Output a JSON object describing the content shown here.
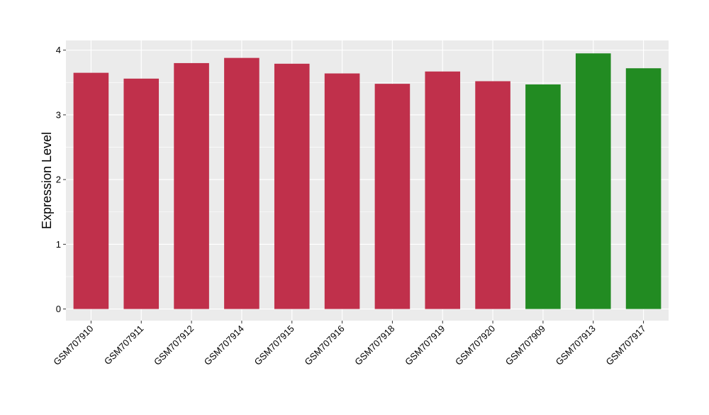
{
  "chart_data": {
    "type": "bar",
    "title": "",
    "xlabel": "",
    "ylabel": "Expression Level",
    "ylim": [
      -0.18,
      4.15
    ],
    "y_ticks": [
      "0",
      "1",
      "2",
      "3",
      "4"
    ],
    "categories": [
      "GSM707910",
      "GSM707911",
      "GSM707912",
      "GSM707914",
      "GSM707915",
      "GSM707916",
      "GSM707918",
      "GSM707919",
      "GSM707920",
      "GSM707909",
      "GSM707913",
      "GSM707917"
    ],
    "values": [
      3.65,
      3.56,
      3.8,
      3.88,
      3.79,
      3.64,
      3.48,
      3.67,
      3.52,
      3.47,
      3.95,
      3.72
    ],
    "bar_colors": [
      "#c0304b",
      "#c0304b",
      "#c0304b",
      "#c0304b",
      "#c0304b",
      "#c0304b",
      "#c0304b",
      "#c0304b",
      "#c0304b",
      "#228b22",
      "#228b22",
      "#228b22"
    ],
    "panel_background": "#ebebeb",
    "grid_color": "#ffffff",
    "grid": true,
    "legend": "none"
  }
}
